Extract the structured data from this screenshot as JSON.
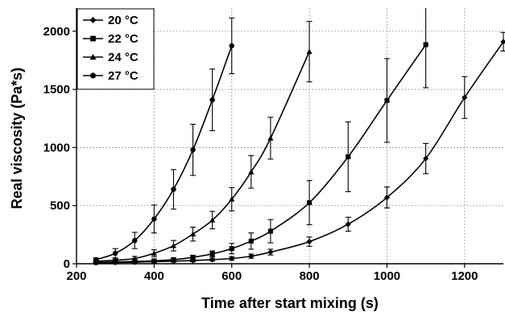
{
  "chart_data": {
    "type": "line",
    "title": "",
    "xlabel": "Time after start mixing (s)",
    "ylabel": "Real viscosity (Pa*s)",
    "xlim": [
      200,
      1300
    ],
    "ylim": [
      0,
      2200
    ],
    "xticks": [
      200,
      400,
      600,
      800,
      1000,
      1200
    ],
    "yticks": [
      0,
      500,
      1000,
      1500,
      2000
    ],
    "grid": true,
    "legend_position": "top-left",
    "series": [
      {
        "name": "20 °C",
        "marker": "diamond",
        "x": [
          250,
          300,
          350,
          400,
          450,
          500,
          550,
          600,
          650,
          700,
          800,
          900,
          1000,
          1100,
          1200,
          1300
        ],
        "y": [
          8,
          10,
          13,
          18,
          22,
          27,
          35,
          45,
          65,
          100,
          190,
          340,
          570,
          905,
          1430,
          1910
        ],
        "err": [
          5,
          5,
          6,
          8,
          8,
          10,
          12,
          15,
          18,
          25,
          40,
          60,
          90,
          130,
          180,
          80
        ]
      },
      {
        "name": "22 °C",
        "marker": "square",
        "x": [
          250,
          300,
          350,
          400,
          450,
          500,
          550,
          600,
          650,
          700,
          800,
          900,
          1000,
          1100
        ],
        "y": [
          12,
          15,
          20,
          25,
          35,
          55,
          85,
          130,
          195,
          280,
          525,
          920,
          1405,
          1885
        ],
        "err": [
          6,
          6,
          8,
          10,
          12,
          18,
          25,
          45,
          70,
          100,
          190,
          300,
          360,
          370
        ]
      },
      {
        "name": "24 °C",
        "marker": "triangle",
        "x": [
          250,
          300,
          350,
          400,
          450,
          500,
          550,
          600,
          650,
          700,
          800
        ],
        "y": [
          22,
          30,
          45,
          90,
          155,
          255,
          375,
          555,
          790,
          1080,
          1825
        ],
        "err": [
          10,
          12,
          18,
          30,
          45,
          60,
          75,
          100,
          140,
          180,
          260
        ]
      },
      {
        "name": "27 °C",
        "marker": "circle",
        "x": [
          250,
          300,
          350,
          400,
          450,
          500,
          550,
          600
        ],
        "y": [
          35,
          90,
          200,
          385,
          640,
          980,
          1410,
          1875
        ],
        "err": [
          15,
          40,
          70,
          120,
          170,
          220,
          265,
          240
        ]
      }
    ]
  }
}
